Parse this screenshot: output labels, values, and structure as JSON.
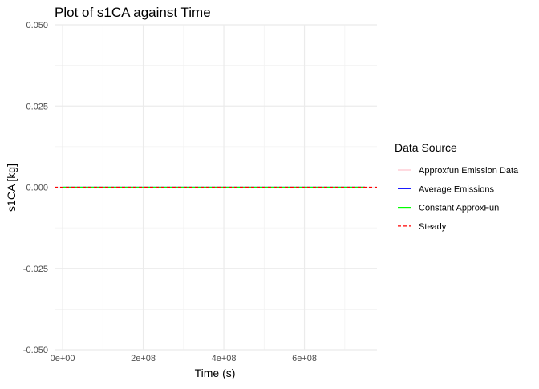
{
  "chart_data": {
    "type": "line",
    "title": "Plot of s1CA against Time",
    "xlabel": "Time (s)",
    "ylabel": "s1CA [kg]",
    "xlim": [
      -20000000,
      780000000
    ],
    "ylim": [
      -0.05,
      0.05
    ],
    "x_ticks": [
      0,
      200000000,
      400000000,
      600000000
    ],
    "x_tick_labels": [
      "0e+00",
      "2e+08",
      "4e+08",
      "6e+08"
    ],
    "y_ticks": [
      -0.05,
      -0.025,
      0.0,
      0.025,
      0.05
    ],
    "y_tick_labels": [
      "-0.050",
      "-0.025",
      "0.000",
      "0.025",
      "0.050"
    ],
    "grid": true,
    "legend": {
      "title": "Data Source",
      "position": "right"
    },
    "series": [
      {
        "name": "Approxfun Emission Data",
        "color": "#ffc0cb",
        "line_style": "solid",
        "x": [
          0,
          750000000
        ],
        "y": [
          0,
          0
        ]
      },
      {
        "name": "Average Emissions",
        "color": "#0000ff",
        "line_style": "solid",
        "x": [
          0,
          750000000
        ],
        "y": [
          0,
          0
        ]
      },
      {
        "name": "Constant ApproxFun",
        "color": "#00ff00",
        "line_style": "solid",
        "x": [
          0,
          750000000
        ],
        "y": [
          0,
          0
        ]
      },
      {
        "name": "Steady",
        "color": "#ff0000",
        "line_style": "dashed",
        "horizontal_line": true,
        "y": 0
      }
    ]
  }
}
